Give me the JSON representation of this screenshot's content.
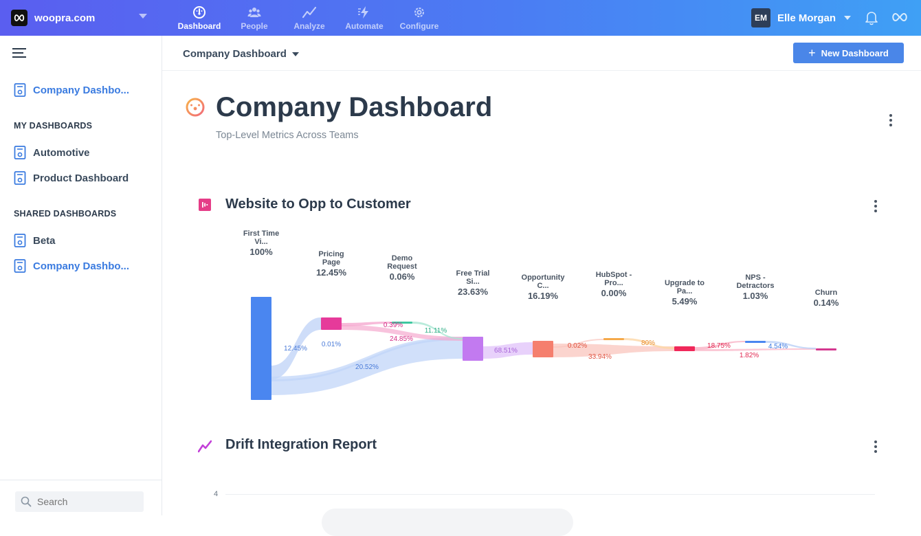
{
  "topbar": {
    "brand": "woopra.com",
    "nav": [
      {
        "label": "Dashboard",
        "icon": "gauge-icon"
      },
      {
        "label": "People",
        "icon": "people-icon"
      },
      {
        "label": "Analyze",
        "icon": "trend-icon"
      },
      {
        "label": "Automate",
        "icon": "bolt-icon"
      },
      {
        "label": "Configure",
        "icon": "gear-icon"
      }
    ],
    "user_initials": "EM",
    "user_name": "Elle Morgan"
  },
  "sidebar": {
    "current": "Company Dashbo...",
    "my_heading": "MY DASHBOARDS",
    "my": [
      "Automotive",
      "Product Dashboard"
    ],
    "shared_heading": "SHARED DASHBOARDS",
    "shared": [
      "Beta",
      "Company Dashbo..."
    ],
    "search_placeholder": "Search"
  },
  "main": {
    "breadcrumb": "Company Dashboard",
    "new_button": "New Dashboard",
    "title": "Company Dashboard",
    "subtitle": "Top-Level Metrics Across Teams"
  },
  "widgets": [
    {
      "title": "Website to Opp to Customer"
    },
    {
      "title": "Drift Integration Report",
      "y_tick": "4"
    }
  ],
  "colors": {
    "accent": "#4a86e8",
    "first_time": "#4a86f0",
    "pricing": "#e63a9a",
    "demo": "#3ec7a0",
    "free_trial": "#c27af0",
    "opportunity": "#f57f6e",
    "hubspot": "#f5a94a",
    "upgrade": "#f0285a",
    "nps": "#4a86f0",
    "churn": "#d4378f"
  },
  "chart_data": {
    "type": "sankey",
    "nodes": [
      {
        "label": [
          "First Time",
          "Vi..."
        ],
        "value": "100%",
        "color": "#4a86f0"
      },
      {
        "label": [
          "Pricing",
          "Page"
        ],
        "value": "12.45%",
        "color": "#e63a9a"
      },
      {
        "label": [
          "Demo",
          "Request"
        ],
        "value": "0.06%",
        "color": "#3ec7a0"
      },
      {
        "label": [
          "Free Trial",
          "Si..."
        ],
        "value": "23.63%",
        "color": "#c27af0"
      },
      {
        "label": [
          "Opportunity",
          "C..."
        ],
        "value": "16.19%",
        "color": "#f57f6e"
      },
      {
        "label": [
          "HubSpot -",
          "Pro..."
        ],
        "value": "0.00%",
        "color": "#f5a94a"
      },
      {
        "label": [
          "Upgrade to",
          "Pa..."
        ],
        "value": "5.49%",
        "color": "#f0285a"
      },
      {
        "label": [
          "NPS -",
          "Detractors"
        ],
        "value": "1.03%",
        "color": "#4a86f0"
      },
      {
        "label": [
          "Churn"
        ],
        "value": "0.14%",
        "color": "#d4378f"
      }
    ],
    "link_labels": [
      {
        "text": "12.45%",
        "color": "#4a7bd8"
      },
      {
        "text": "0.01%",
        "color": "#4a7bd8"
      },
      {
        "text": "20.52%",
        "color": "#4a7bd8"
      },
      {
        "text": "0.39%",
        "color": "#d42b84"
      },
      {
        "text": "24.85%",
        "color": "#d42b84"
      },
      {
        "text": "11.11%",
        "color": "#2fae86"
      },
      {
        "text": "68.51%",
        "color": "#a763d8"
      },
      {
        "text": "0.02%",
        "color": "#e0523f"
      },
      {
        "text": "33.94%",
        "color": "#e0523f"
      },
      {
        "text": "80%",
        "color": "#e98d2a"
      },
      {
        "text": "18.75%",
        "color": "#e0264f"
      },
      {
        "text": "1.82%",
        "color": "#e0264f"
      },
      {
        "text": "4.54%",
        "color": "#3a78e0"
      }
    ]
  }
}
